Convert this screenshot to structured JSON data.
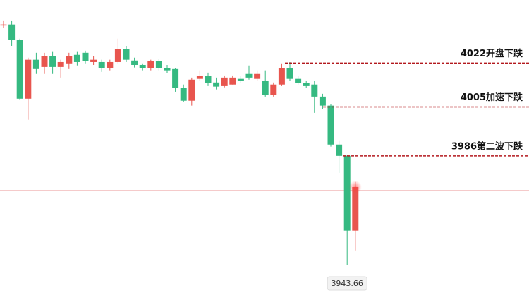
{
  "chart_data": {
    "type": "candlestick",
    "open": [
      4036.7,
      4037.0,
      4030.9,
      4008.2,
      4023.3,
      4020.5,
      4024.6,
      4020.5,
      4021.9,
      4025.2,
      4026.0,
      4022.4,
      4022.4,
      4020.0,
      4022.4,
      4027.4,
      4023.0,
      4021.3,
      4020.0,
      4022.7,
      4020.0,
      4019.7,
      4012.3,
      4007.4,
      4015.9,
      4017.0,
      4014.5,
      4013.1,
      4013.7,
      4015.9,
      4017.8,
      4015.9,
      4015.0,
      4009.6,
      4013.7,
      4020.0,
      4015.9,
      4014.2,
      4013.7,
      4009.0,
      4005.5,
      3990.4,
      3986.0,
      3957.0
    ],
    "high": [
      4038.3,
      4038.3,
      4031.5,
      4024.1,
      4026.0,
      4026.0,
      4026.6,
      4023.3,
      4026.0,
      4026.6,
      4026.8,
      4024.6,
      4023.3,
      4023.3,
      4031.5,
      4028.7,
      4024.1,
      4021.9,
      4023.3,
      4023.5,
      4021.3,
      4020.0,
      4013.7,
      4016.4,
      4019.2,
      4018.3,
      4016.4,
      4017.2,
      4017.2,
      4017.0,
      4021.1,
      4019.2,
      4019.2,
      4014.5,
      4021.9,
      4022.4,
      4017.0,
      4015.0,
      4015.0,
      4010.1,
      4006.0,
      3991.8,
      3986.5,
      3975.9
    ],
    "low": [
      4035.6,
      4028.7,
      4007.6,
      4000.0,
      4017.8,
      4017.8,
      4017.8,
      4016.4,
      4019.7,
      4021.1,
      4021.9,
      4021.3,
      4018.6,
      4019.2,
      4021.9,
      4022.4,
      4020.3,
      4019.2,
      4019.2,
      4019.2,
      4018.1,
      4010.9,
      4006.8,
      4005.5,
      4015.0,
      4013.1,
      4011.8,
      4012.6,
      4013.7,
      4014.2,
      4015.6,
      4015.0,
      4009.0,
      4009.0,
      4013.1,
      4015.0,
      4013.7,
      4012.3,
      4002.7,
      4004.1,
      3989.6,
      3979.4,
      3943.66,
      3949.3
    ],
    "close": [
      4037.0,
      4030.9,
      4008.2,
      4023.3,
      4019.7,
      4024.6,
      4020.5,
      4022.4,
      4024.6,
      4022.4,
      4022.7,
      4023.3,
      4020.0,
      4022.4,
      4027.4,
      4023.3,
      4021.3,
      4020.0,
      4022.7,
      4020.0,
      4019.2,
      4012.3,
      4007.4,
      4015.6,
      4017.0,
      4014.2,
      4012.9,
      4016.4,
      4016.4,
      4015.0,
      4016.4,
      4017.8,
      4009.6,
      4013.7,
      4020.0,
      4015.9,
      4014.2,
      4013.1,
      4009.0,
      4005.5,
      3990.4,
      3986.0,
      3957.0,
      3973.9
    ],
    "up_color": "#e8554e",
    "down_color": "#35b981",
    "ylim": [
      3932.8,
      4046.5
    ],
    "price_line": 3972.6,
    "low_label": 3943.66,
    "annotations": [
      {
        "value": 4022,
        "label": "4022开盘下跌"
      },
      {
        "value": 4005,
        "label": "4005加速下跌"
      },
      {
        "value": 3986,
        "label": "3986第二波下跌"
      }
    ],
    "annotation_color": "#b3191e"
  }
}
